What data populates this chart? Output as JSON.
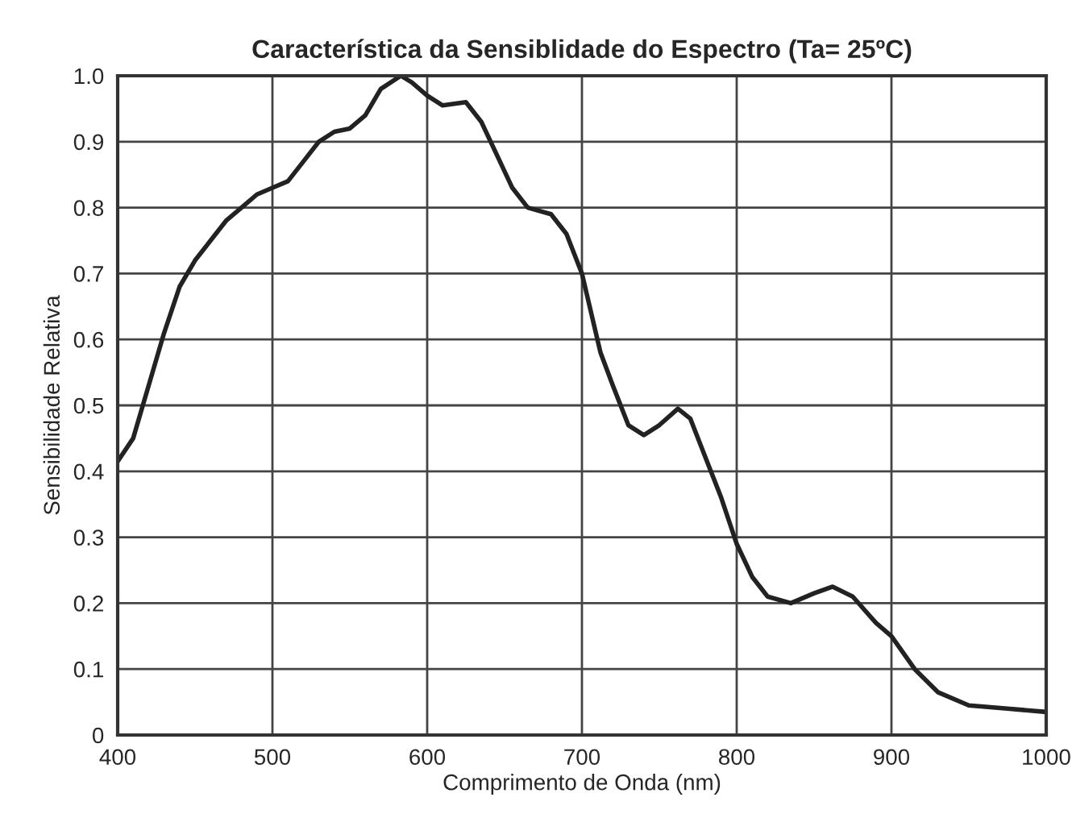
{
  "chart_data": {
    "type": "line",
    "title": "Característica da Sensiblidade do Espectro (Ta= 25ºC)",
    "xlabel": "Comprimento de Onda (nm)",
    "ylabel": "Sensibilidade Relativa",
    "series": [
      {
        "color": "#222222",
        "x": [
          400,
          410,
          420,
          430,
          440,
          450,
          460,
          470,
          480,
          490,
          500,
          510,
          520,
          530,
          540,
          550,
          560,
          570,
          583,
          590,
          600,
          610,
          625,
          635,
          645,
          655,
          665,
          680,
          690,
          700,
          705,
          712,
          720,
          730,
          740,
          750,
          762,
          770,
          780,
          790,
          800,
          810,
          820,
          835,
          850,
          862,
          875,
          890,
          900,
          915,
          930,
          950,
          975,
          1000
        ],
        "values": [
          0.415,
          0.45,
          0.53,
          0.61,
          0.68,
          0.72,
          0.75,
          0.78,
          0.8,
          0.82,
          0.83,
          0.84,
          0.87,
          0.9,
          0.915,
          0.92,
          0.94,
          0.98,
          1.0,
          0.99,
          0.97,
          0.955,
          0.96,
          0.93,
          0.88,
          0.83,
          0.8,
          0.79,
          0.76,
          0.7,
          0.65,
          0.58,
          0.53,
          0.47,
          0.455,
          0.47,
          0.495,
          0.48,
          0.42,
          0.36,
          0.29,
          0.24,
          0.21,
          0.2,
          0.215,
          0.225,
          0.21,
          0.17,
          0.15,
          0.1,
          0.065,
          0.045,
          0.04,
          0.035
        ]
      }
    ],
    "xlim": [
      400,
      1000
    ],
    "xticks": [
      400,
      500,
      600,
      700,
      800,
      900,
      1000
    ],
    "ylim": [
      0,
      1.0
    ],
    "yticks": [
      {
        "value": 0,
        "label": "0"
      },
      {
        "value": 0.1,
        "label": "0.1"
      },
      {
        "value": 0.2,
        "label": "0.2"
      },
      {
        "value": 0.3,
        "label": "0.3"
      },
      {
        "value": 0.4,
        "label": "0.4"
      },
      {
        "value": 0.5,
        "label": "0.5"
      },
      {
        "value": 0.6,
        "label": "0.6"
      },
      {
        "value": 0.7,
        "label": "0.7"
      },
      {
        "value": 0.8,
        "label": "0.8"
      },
      {
        "value": 0.9,
        "label": "0.9"
      },
      {
        "value": 1.0,
        "label": "1.0"
      }
    ],
    "grid": true,
    "line_style": "solid"
  }
}
